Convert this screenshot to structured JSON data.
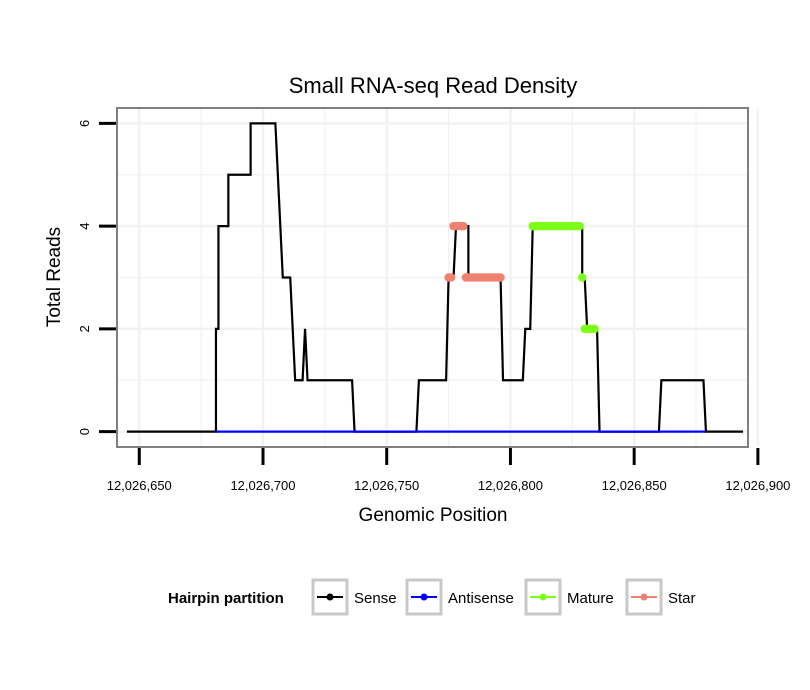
{
  "chart_data": {
    "type": "line",
    "title": "Small RNA-seq Read Density",
    "xlabel": "Genomic Position",
    "ylabel": "Total Reads",
    "xlim": [
      12026641,
      12026896
    ],
    "ylim": [
      -0.3,
      6.3
    ],
    "x_ticks": [
      12026650,
      12026700,
      12026750,
      12026800,
      12026850,
      12026900
    ],
    "x_tick_labels": [
      "12,026,650",
      "12,026,700",
      "12,026,750",
      "12,026,800",
      "12,026,850",
      "12,026,900"
    ],
    "y_ticks": [
      0,
      2,
      4,
      6
    ],
    "y_tick_labels": [
      "0",
      "2",
      "4",
      "6"
    ],
    "grid": true,
    "legend": {
      "title": "Hairpin partition",
      "position": "bottom",
      "entries": [
        "Sense",
        "Antisense",
        "Mature",
        "Star"
      ]
    },
    "series": [
      {
        "name": "Sense",
        "color": "#000000",
        "style": "line",
        "points": [
          [
            12026645,
            0
          ],
          [
            12026681,
            0
          ],
          [
            12026681,
            2
          ],
          [
            12026682,
            2
          ],
          [
            12026682,
            4
          ],
          [
            12026684,
            4
          ],
          [
            12026684,
            4
          ],
          [
            12026686,
            4
          ],
          [
            12026686,
            5
          ],
          [
            12026695,
            5
          ],
          [
            12026695,
            6
          ],
          [
            12026705,
            6
          ],
          [
            12026708,
            3
          ],
          [
            12026711,
            3
          ],
          [
            12026713,
            1
          ],
          [
            12026716,
            1
          ],
          [
            12026717,
            2
          ],
          [
            12026718,
            1
          ],
          [
            12026736,
            1
          ],
          [
            12026737,
            0
          ],
          [
            12026762,
            0
          ],
          [
            12026763,
            1
          ],
          [
            12026774,
            1
          ],
          [
            12026775,
            3
          ],
          [
            12026777,
            3
          ],
          [
            12026778,
            4
          ],
          [
            12026781,
            4
          ],
          [
            12026781,
            4
          ],
          [
            12026783,
            4
          ],
          [
            12026783,
            3
          ],
          [
            12026796,
            3
          ],
          [
            12026797,
            1
          ],
          [
            12026805,
            1
          ],
          [
            12026806,
            2
          ],
          [
            12026808,
            2
          ],
          [
            12026809,
            4
          ],
          [
            12026829,
            4
          ],
          [
            12026829,
            3
          ],
          [
            12026830,
            3
          ],
          [
            12026831,
            2
          ],
          [
            12026835,
            2
          ],
          [
            12026836,
            0
          ],
          [
            12026860,
            0
          ],
          [
            12026861,
            1
          ],
          [
            12026878,
            1
          ],
          [
            12026879,
            0
          ],
          [
            12026894,
            0
          ]
        ]
      },
      {
        "name": "Antisense",
        "color": "#0000ff",
        "style": "line",
        "points": [
          [
            12026681,
            0
          ],
          [
            12026879,
            0
          ]
        ]
      },
      {
        "name": "Mature",
        "color": "#7cff18",
        "style": "points",
        "points": [
          [
            12026809,
            4
          ],
          [
            12026810,
            4
          ],
          [
            12026811,
            4
          ],
          [
            12026812,
            4
          ],
          [
            12026813,
            4
          ],
          [
            12026814,
            4
          ],
          [
            12026815,
            4
          ],
          [
            12026816,
            4
          ],
          [
            12026817,
            4
          ],
          [
            12026818,
            4
          ],
          [
            12026819,
            4
          ],
          [
            12026820,
            4
          ],
          [
            12026821,
            4
          ],
          [
            12026822,
            4
          ],
          [
            12026823,
            4
          ],
          [
            12026824,
            4
          ],
          [
            12026825,
            4
          ],
          [
            12026826,
            4
          ],
          [
            12026827,
            4
          ],
          [
            12026828,
            4
          ],
          [
            12026829,
            3
          ],
          [
            12026830,
            2
          ],
          [
            12026831,
            2
          ],
          [
            12026832,
            2
          ],
          [
            12026833,
            2
          ],
          [
            12026834,
            2
          ]
        ]
      },
      {
        "name": "Star",
        "color": "#f08070",
        "style": "points",
        "points": [
          [
            12026775,
            3
          ],
          [
            12026776,
            3
          ],
          [
            12026777,
            4
          ],
          [
            12026778,
            4
          ],
          [
            12026779,
            4
          ],
          [
            12026780,
            4
          ],
          [
            12026781,
            4
          ],
          [
            12026782,
            3
          ],
          [
            12026783,
            3
          ],
          [
            12026784,
            3
          ],
          [
            12026785,
            3
          ],
          [
            12026786,
            3
          ],
          [
            12026787,
            3
          ],
          [
            12026788,
            3
          ],
          [
            12026789,
            3
          ],
          [
            12026790,
            3
          ],
          [
            12026791,
            3
          ],
          [
            12026792,
            3
          ],
          [
            12026793,
            3
          ],
          [
            12026794,
            3
          ],
          [
            12026795,
            3
          ],
          [
            12026796,
            3
          ]
        ]
      }
    ]
  }
}
